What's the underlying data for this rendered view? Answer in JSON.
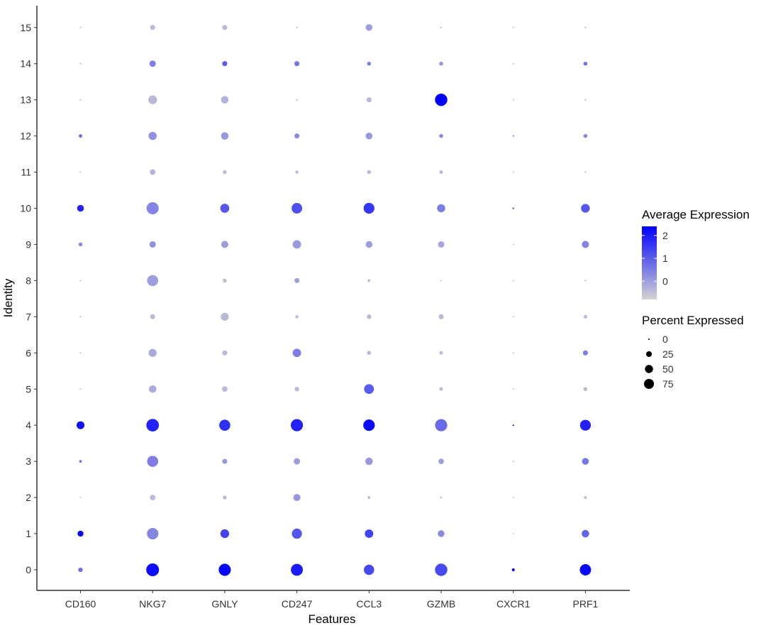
{
  "chart_data": {
    "type": "dotplot",
    "xlabel": "Features",
    "ylabel": "Identity",
    "features": [
      "CD160",
      "NKG7",
      "GNLY",
      "CD247",
      "CCL3",
      "GZMB",
      "CXCR1",
      "PRF1"
    ],
    "identities": [
      "0",
      "1",
      "2",
      "3",
      "4",
      "5",
      "6",
      "7",
      "8",
      "9",
      "10",
      "11",
      "12",
      "13",
      "14",
      "15"
    ],
    "color_legend": {
      "title": "Average Expression",
      "ticks": [
        "2",
        "1",
        "0"
      ],
      "tick_values": [
        2,
        1,
        0
      ],
      "range": [
        -0.8,
        2.4
      ],
      "low_color": "#d3d3d3",
      "high_color": "#0000ff"
    },
    "size_legend": {
      "title": "Percent Expressed",
      "ticks": [
        "0",
        "25",
        "50",
        "75"
      ],
      "tick_values": [
        0,
        25,
        50,
        75
      ]
    },
    "legend_position": "right",
    "grid": false,
    "dots": {
      "CD160": {
        "pct": [
          8,
          14,
          0,
          3,
          24,
          1,
          1,
          1,
          1,
          6,
          18,
          1,
          5,
          1,
          1,
          1
        ],
        "avg": [
          0.7,
          2.3,
          -0.5,
          0.6,
          2.2,
          -0.5,
          -0.5,
          -0.5,
          -0.5,
          0.3,
          1.9,
          -0.5,
          0.7,
          -0.5,
          -0.5,
          -0.5
        ]
      },
      "NKG7": {
        "pct": [
          64,
          52,
          12,
          48,
          62,
          22,
          25,
          10,
          48,
          16,
          58,
          12,
          26,
          30,
          16,
          10
        ],
        "avg": [
          2.2,
          0.4,
          -0.4,
          0.5,
          1.9,
          -0.2,
          -0.2,
          -0.4,
          0.0,
          0.2,
          0.4,
          -0.3,
          0.2,
          -0.4,
          0.5,
          -0.4
        ]
      },
      "GNLY": {
        "pct": [
          58,
          30,
          6,
          10,
          48,
          12,
          10,
          25,
          6,
          20,
          32,
          6,
          22,
          22,
          10,
          10
        ],
        "avg": [
          2.3,
          1.4,
          -0.4,
          0.1,
          1.7,
          -0.4,
          -0.4,
          -0.4,
          -0.4,
          0.0,
          1.1,
          -0.4,
          0.1,
          -0.3,
          1.0,
          -0.4
        ]
      },
      "CD247": {
        "pct": [
          56,
          40,
          20,
          16,
          58,
          8,
          28,
          4,
          10,
          28,
          44,
          4,
          10,
          1,
          10,
          1
        ],
        "avg": [
          2.0,
          1.1,
          0.1,
          0.0,
          1.9,
          -0.4,
          0.5,
          -0.4,
          0.0,
          0.1,
          1.2,
          -0.4,
          0.3,
          -0.4,
          0.6,
          -0.4
        ]
      },
      "CCL3": {
        "pct": [
          42,
          28,
          3,
          22,
          52,
          38,
          6,
          8,
          3,
          18,
          46,
          6,
          18,
          10,
          6,
          18
        ],
        "avg": [
          1.3,
          1.4,
          -0.4,
          0.1,
          2.3,
          1.0,
          -0.4,
          -0.4,
          -0.4,
          0.0,
          1.6,
          -0.4,
          0.1,
          -0.4,
          0.5,
          0.0
        ]
      },
      "GZMB": {
        "pct": [
          60,
          18,
          1,
          12,
          58,
          5,
          5,
          10,
          0,
          16,
          26,
          5,
          6,
          60,
          6,
          1
        ],
        "avg": [
          1.3,
          0.3,
          -0.4,
          0.0,
          0.8,
          -0.4,
          -0.4,
          -0.4,
          -0.4,
          -0.1,
          0.5,
          -0.4,
          0.4,
          2.4,
          0.2,
          -0.4
        ]
      },
      "CXCR1": {
        "pct": [
          3,
          0,
          0,
          0,
          1,
          0,
          0,
          0,
          0,
          0,
          1,
          0,
          0,
          0,
          0,
          0
        ],
        "avg": [
          2.4,
          -0.5,
          -0.5,
          -0.5,
          2.0,
          -0.5,
          -0.5,
          -0.5,
          -0.5,
          -0.5,
          1.5,
          -0.5,
          0.8,
          -0.5,
          -0.5,
          -0.5
        ]
      },
      "PRF1": {
        "pct": [
          50,
          22,
          3,
          18,
          46,
          6,
          10,
          5,
          1,
          20,
          30,
          1,
          6,
          1,
          6,
          1
        ],
        "avg": [
          2.3,
          0.9,
          -0.4,
          0.6,
          1.9,
          -0.4,
          0.5,
          -0.4,
          -0.4,
          0.4,
          1.1,
          -0.4,
          0.4,
          -0.4,
          0.7,
          -0.4
        ]
      }
    }
  }
}
